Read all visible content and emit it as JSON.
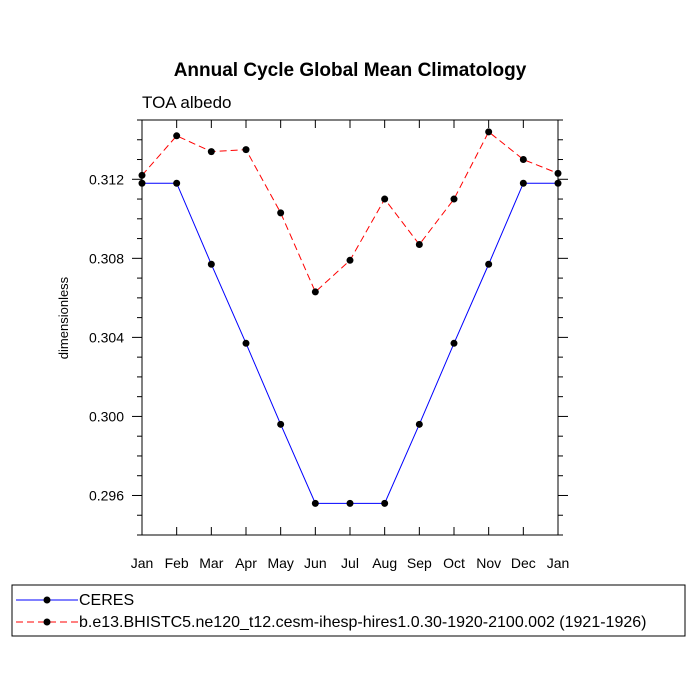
{
  "chart_data": {
    "type": "line",
    "title": "Annual Cycle Global Mean Climatology",
    "subtitle": "TOA albedo",
    "xlabel": "",
    "ylabel": "dimensionless",
    "categories": [
      "Jan",
      "Feb",
      "Mar",
      "Apr",
      "May",
      "Jun",
      "Jul",
      "Aug",
      "Sep",
      "Oct",
      "Nov",
      "Dec",
      "Jan"
    ],
    "yticks": [
      0.296,
      0.3,
      0.304,
      0.308,
      0.312
    ],
    "ytick_labels": [
      "0.296",
      "0.300",
      "0.304",
      "0.308",
      "0.312"
    ],
    "ylim": [
      0.294,
      0.315
    ],
    "grid": false,
    "legend_position": "bottom",
    "series": [
      {
        "name": "CERES",
        "color": "#0000ff",
        "dash": "solid",
        "marker": "circle",
        "values": [
          0.3118,
          0.3118,
          0.3077,
          0.3037,
          0.2996,
          0.2956,
          0.2956,
          0.2956,
          0.2996,
          0.3037,
          0.3077,
          0.3118,
          0.3118
        ]
      },
      {
        "name": "b.e13.BHISTC5.ne120_t12.cesm-ihesp-hires1.0.30-1920-2100.002 (1921-1926)",
        "color": "#ff0000",
        "dash": "dashed",
        "marker": "circle",
        "values": [
          0.3122,
          0.3142,
          0.3134,
          0.3135,
          0.3103,
          0.3063,
          0.3079,
          0.311,
          0.3087,
          0.311,
          0.3144,
          0.313,
          0.3123
        ]
      }
    ]
  }
}
